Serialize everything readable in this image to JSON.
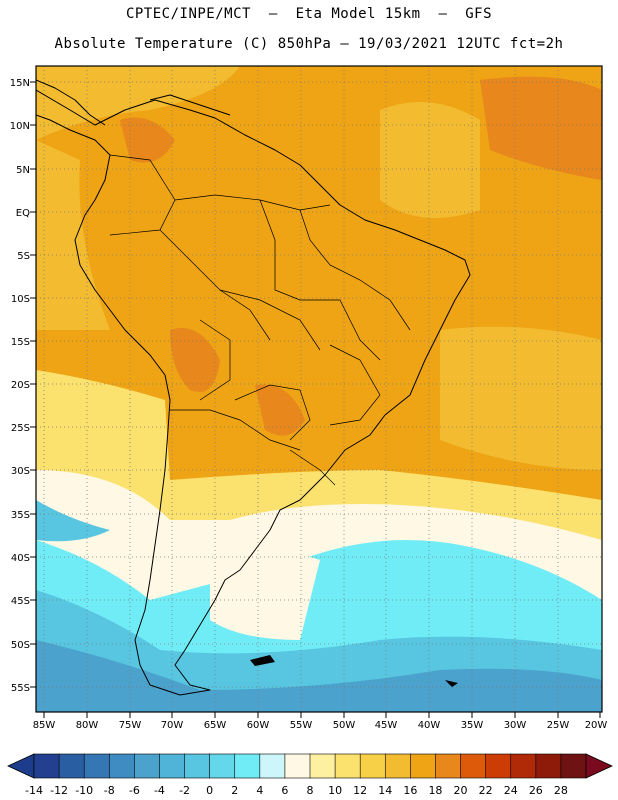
{
  "title_line1": "CPTEC/INPE/MCT  –  Eta Model 15km  –  GFS",
  "title_line2": "Absolute Temperature (C) 850hPa – 19/03/2021 12UTC fct=2h",
  "lat_labels": [
    "15N",
    "10N",
    "5N",
    "EQ",
    "5S",
    "10S",
    "15S",
    "20S",
    "25S",
    "30S",
    "35S",
    "40S",
    "45S",
    "50S",
    "55S"
  ],
  "lon_labels": [
    "85W",
    "80W",
    "75W",
    "70W",
    "65W",
    "60W",
    "55W",
    "50W",
    "45W",
    "40W",
    "35W",
    "30W",
    "25W",
    "20W"
  ],
  "colorbar": {
    "labels": [
      "-14",
      "-12",
      "-10",
      "-8",
      "-6",
      "-4",
      "-2",
      "0",
      "2",
      "4",
      "6",
      "8",
      "10",
      "12",
      "14",
      "16",
      "18",
      "20",
      "22",
      "24",
      "26",
      "28"
    ],
    "under_color": "#1e3c8c",
    "over_color": "#7a0a1e",
    "colors": [
      "#22408f",
      "#2a5ea3",
      "#3576b4",
      "#3f8cc2",
      "#4aa2cd",
      "#4fb4d8",
      "#58c6e0",
      "#64d8ea",
      "#70ecf6",
      "#cdf6fb",
      "#fef8e4",
      "#fdf0a0",
      "#fbe26e",
      "#f7d048",
      "#f2bb30",
      "#eea414",
      "#e7871c",
      "#dc5a0a",
      "#cc3c05",
      "#b02a08",
      "#8e1a0a",
      "#6e1214"
    ]
  }
}
